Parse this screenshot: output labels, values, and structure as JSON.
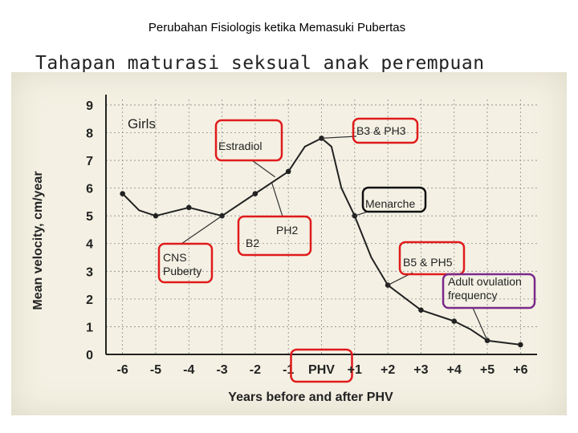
{
  "slide": {
    "title": "Perubahan Fisiologis ketika Memasuki Pubertas",
    "subtitle": "Tahapan maturasi seksual  anak perempuan"
  },
  "colors": {
    "callout_red": "#e01b1b",
    "callout_purple": "#7a2a8a",
    "paper": "#f4f1e4",
    "ink": "#222222"
  },
  "chart_data": {
    "type": "line",
    "title": "Girls",
    "xlabel": "Years before and after PHV",
    "ylabel": "Mean velocity, cm/year",
    "x_ticks": [
      "-6",
      "-5",
      "-4",
      "-3",
      "-2",
      "-1",
      "PHV",
      "+1",
      "+2",
      "+3",
      "+4",
      "+5",
      "+6"
    ],
    "y_ticks": [
      "0",
      "1",
      "2",
      "3",
      "4",
      "5",
      "6",
      "7",
      "8",
      "9"
    ],
    "xlim": [
      -6.5,
      6.5
    ],
    "ylim": [
      0,
      9.2
    ],
    "grid": true,
    "series": [
      {
        "values": [
          {
            "x": -6,
            "y": 5.8
          },
          {
            "x": -5.5,
            "y": 5.2
          },
          {
            "x": -5,
            "y": 5.0
          },
          {
            "x": -4,
            "y": 5.3
          },
          {
            "x": -3,
            "y": 5.0
          },
          {
            "x": -2,
            "y": 5.8
          },
          {
            "x": -1,
            "y": 6.6
          },
          {
            "x": -0.5,
            "y": 7.5
          },
          {
            "x": 0,
            "y": 7.8
          },
          {
            "x": 0.3,
            "y": 7.5
          },
          {
            "x": 0.6,
            "y": 6.0
          },
          {
            "x": 1,
            "y": 5.0
          },
          {
            "x": 1.5,
            "y": 3.5
          },
          {
            "x": 2,
            "y": 2.5
          },
          {
            "x": 3,
            "y": 1.6
          },
          {
            "x": 4,
            "y": 1.2
          },
          {
            "x": 4.5,
            "y": 0.9
          },
          {
            "x": 5,
            "y": 0.5
          },
          {
            "x": 6,
            "y": 0.35
          }
        ],
        "markers": [
          {
            "x": -6,
            "y": 5.8
          },
          {
            "x": -5,
            "y": 5.0
          },
          {
            "x": -4,
            "y": 5.3
          },
          {
            "x": -3,
            "y": 5.0
          },
          {
            "x": -2,
            "y": 5.8
          },
          {
            "x": -1,
            "y": 6.6
          },
          {
            "x": 0,
            "y": 7.8
          },
          {
            "x": 1,
            "y": 5.0
          },
          {
            "x": 2,
            "y": 2.5
          },
          {
            "x": 3,
            "y": 1.6
          },
          {
            "x": 4,
            "y": 1.2
          },
          {
            "x": 5,
            "y": 0.5
          },
          {
            "x": 6,
            "y": 0.35
          }
        ]
      }
    ],
    "annotations": [
      {
        "lines": [
          "Estradiol"
        ],
        "box": "red",
        "target": {
          "x": -1.4,
          "y": 6.4
        }
      },
      {
        "lines": [
          "B3 & PH3"
        ],
        "box": "red",
        "target": {
          "x": 0,
          "y": 7.8
        }
      },
      {
        "lines": [
          "Menarche"
        ],
        "box": "black",
        "target": {
          "x": 1,
          "y": 5.0
        }
      },
      {
        "lines": [
          "B2",
          "PH2"
        ],
        "box": "red",
        "target": {
          "x": -1.5,
          "y": 6.2
        }
      },
      {
        "lines": [
          "CNS",
          "Puberty"
        ],
        "box": "red",
        "target": {
          "x": -3,
          "y": 5.0
        }
      },
      {
        "lines": [
          "B5 & PH5"
        ],
        "box": "red",
        "target": {
          "x": 2,
          "y": 2.5
        }
      },
      {
        "lines": [
          "Adult ovulation",
          "frequency"
        ],
        "box": "purple",
        "target": {
          "x": 5,
          "y": 0.5
        }
      }
    ],
    "highlight_tick": "PHV"
  }
}
